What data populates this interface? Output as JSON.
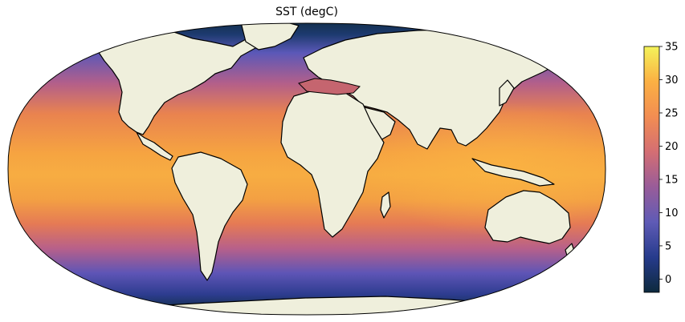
{
  "map": {
    "title": "SST (degC)",
    "projection": "robinson",
    "land_color": "#efefdc",
    "coastline_color": "#000000"
  },
  "colorbar": {
    "colormap": "thermal",
    "stops": [
      "#0d2a3d",
      "#263b8c",
      "#5f5bb6",
      "#995c99",
      "#d46e73",
      "#f28d52",
      "#fbb043",
      "#f4f35a"
    ],
    "vmin": -2,
    "vmax": 35,
    "ticks": [
      0,
      5,
      10,
      15,
      20,
      25,
      30,
      35
    ],
    "tick_labels": [
      "0",
      "5",
      "10",
      "15",
      "20",
      "25",
      "30",
      "35"
    ]
  }
}
